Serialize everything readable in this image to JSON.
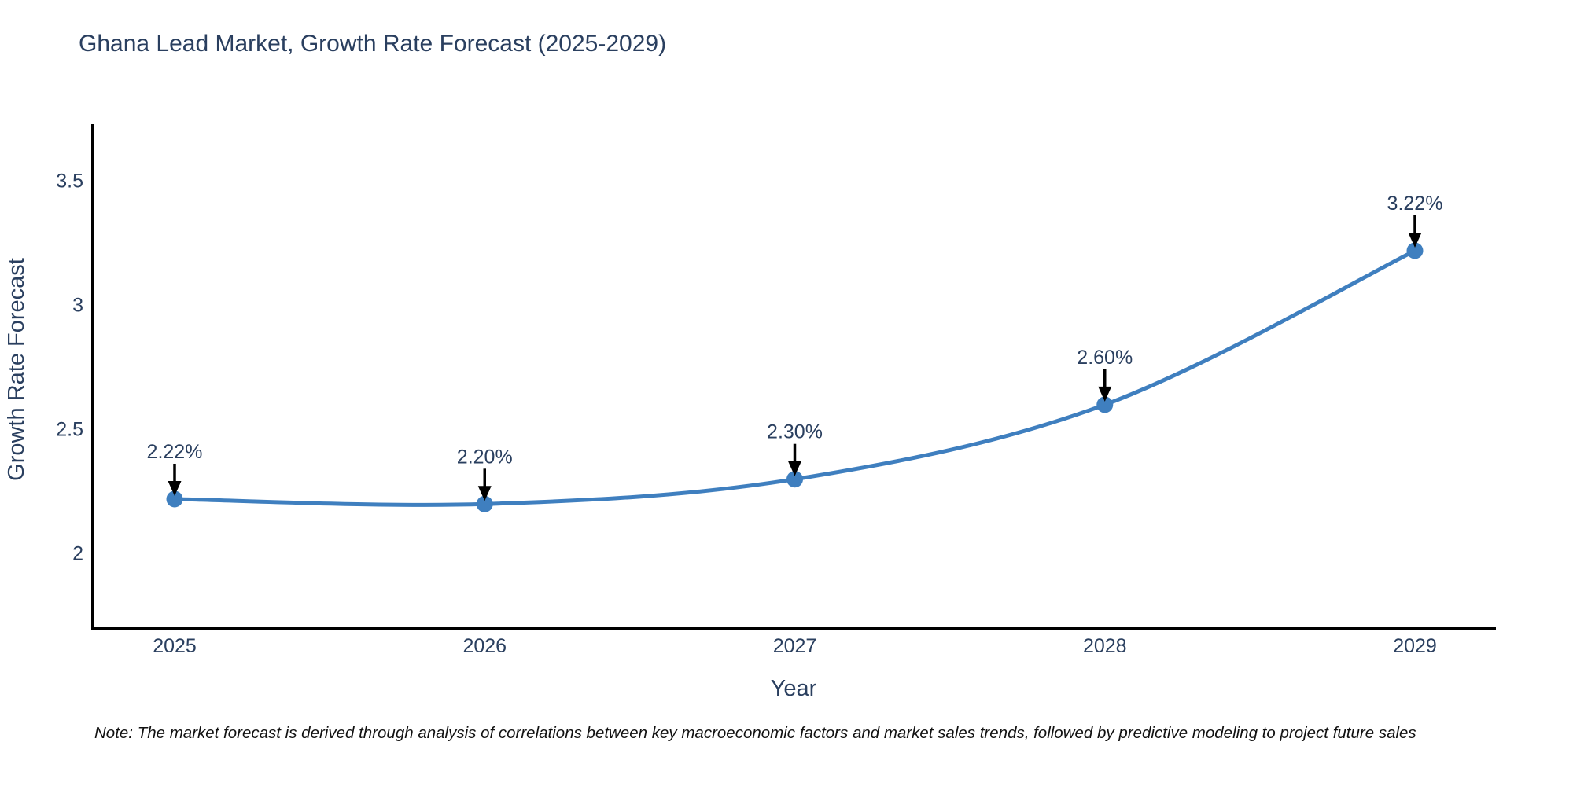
{
  "chart_data": {
    "type": "line",
    "title": "Ghana Lead Market, Growth Rate Forecast (2025-2029)",
    "xlabel": "Year",
    "ylabel": "Growth Rate Forecast",
    "categories": [
      "2025",
      "2026",
      "2027",
      "2028",
      "2029"
    ],
    "series": [
      {
        "name": "Growth Rate Forecast",
        "values": [
          2.22,
          2.2,
          2.3,
          2.6,
          3.22
        ],
        "point_labels": [
          "2.22%",
          "2.20%",
          "2.30%",
          "2.60%",
          "3.22%"
        ]
      }
    ],
    "yticks": [
      2,
      2.5,
      3,
      3.5
    ],
    "ytick_labels": [
      "2",
      "2.5",
      "3",
      "3.5"
    ],
    "ylim": [
      1.7,
      3.72
    ],
    "grid": false,
    "legend_position": "none",
    "marker_style": "circle",
    "annotation_arrows": true,
    "note": "Note: The market forecast is derived through analysis of correlations between key macroeconomic factors and market sales trends, followed by predictive modeling to project future sales",
    "colors": {
      "line": "#3f7fbf",
      "marker": "#3f7fbf",
      "axis_line": "#000000",
      "arrow": "#000000",
      "text": "#2a3f5f",
      "note_text": "#111111"
    }
  }
}
